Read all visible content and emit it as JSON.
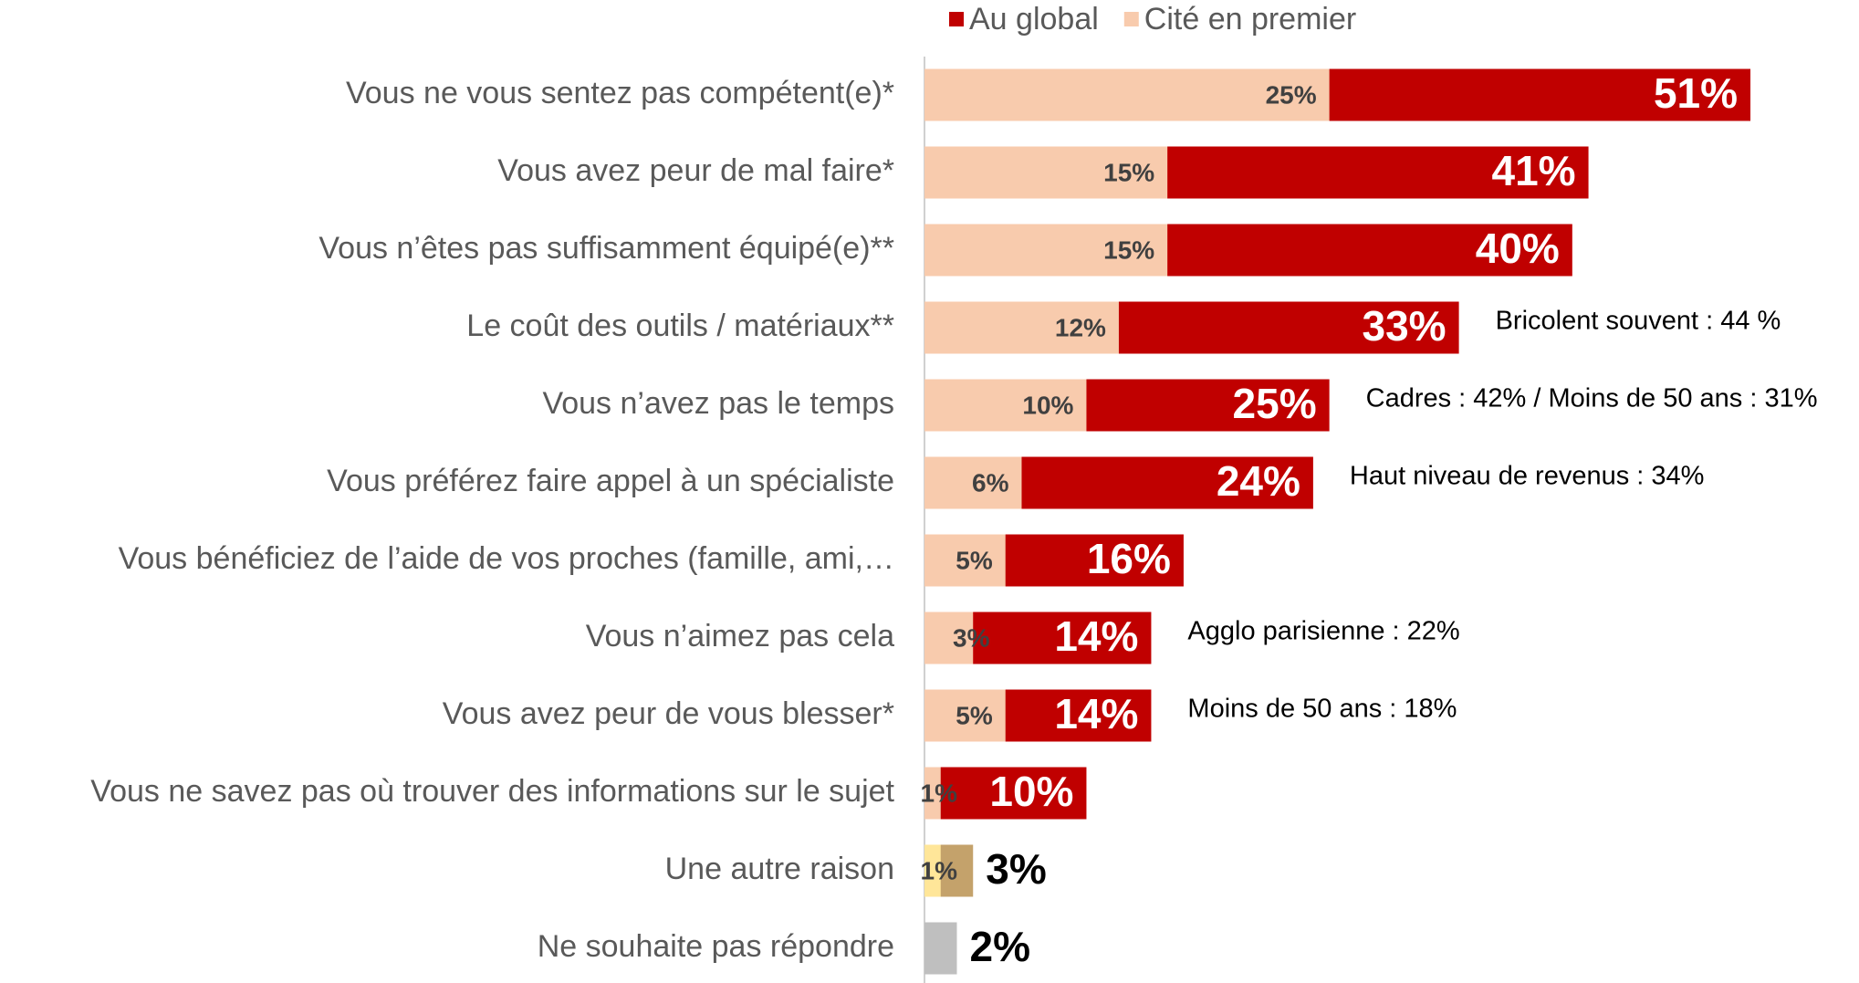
{
  "chart_data": {
    "type": "bar_overlap",
    "categories": [
      "Vous ne vous sentez pas compétent(e)*",
      "Vous avez peur de mal faire*",
      "Vous n’êtes pas suffisamment équipé(e)**",
      "Le coût des outils / matériaux**",
      "Vous n’avez pas le temps",
      "Vous préférez faire appel à un spécialiste",
      "Vous bénéficiez de l’aide de vos proches (famille, ami,…",
      "Vous n’aimez pas cela",
      "Vous avez peur de vous blesser*",
      "Vous ne savez pas où trouver des informations sur le sujet",
      "Une autre raison",
      "Ne souhaite pas répondre"
    ],
    "series": [
      {
        "name": "Au global",
        "color": "#c00000",
        "colors": [
          "#c00000",
          "#c00000",
          "#c00000",
          "#c00000",
          "#c00000",
          "#c00000",
          "#c00000",
          "#c00000",
          "#c00000",
          "#c00000",
          "#c4a26b",
          "#bfbfbf"
        ],
        "values": [
          51,
          41,
          40,
          33,
          25,
          24,
          16,
          14,
          14,
          10,
          3,
          2
        ],
        "value_labels": [
          "51%",
          "41%",
          "40%",
          "33%",
          "25%",
          "24%",
          "16%",
          "14%",
          "14%",
          "10%",
          "3%",
          "2%"
        ]
      },
      {
        "name": "Cité en premier",
        "color": "#f8cbad",
        "colors": [
          "#f8cbad",
          "#f8cbad",
          "#f8cbad",
          "#f8cbad",
          "#f8cbad",
          "#f8cbad",
          "#f8cbad",
          "#f8cbad",
          "#f8cbad",
          "#f8cbad",
          "#ffe699",
          null
        ],
        "values": [
          25,
          15,
          15,
          12,
          10,
          6,
          5,
          3,
          5,
          1,
          1,
          null
        ],
        "value_labels": [
          "25%",
          "15%",
          "15%",
          "12%",
          "10%",
          "6%",
          "5%",
          "3%",
          "5%",
          "1%",
          "1%",
          null
        ]
      }
    ],
    "annotations": [
      null,
      null,
      null,
      "Bricolent souvent : 44 %",
      "Cadres : 42% / Moins de 50 ans : 31%",
      "Haut niveau de revenus : 34%",
      null,
      "Agglo parisienne : 22%",
      "Moins de 50 ans : 18%",
      null,
      null,
      null
    ],
    "xlim": [
      0,
      55
    ]
  }
}
